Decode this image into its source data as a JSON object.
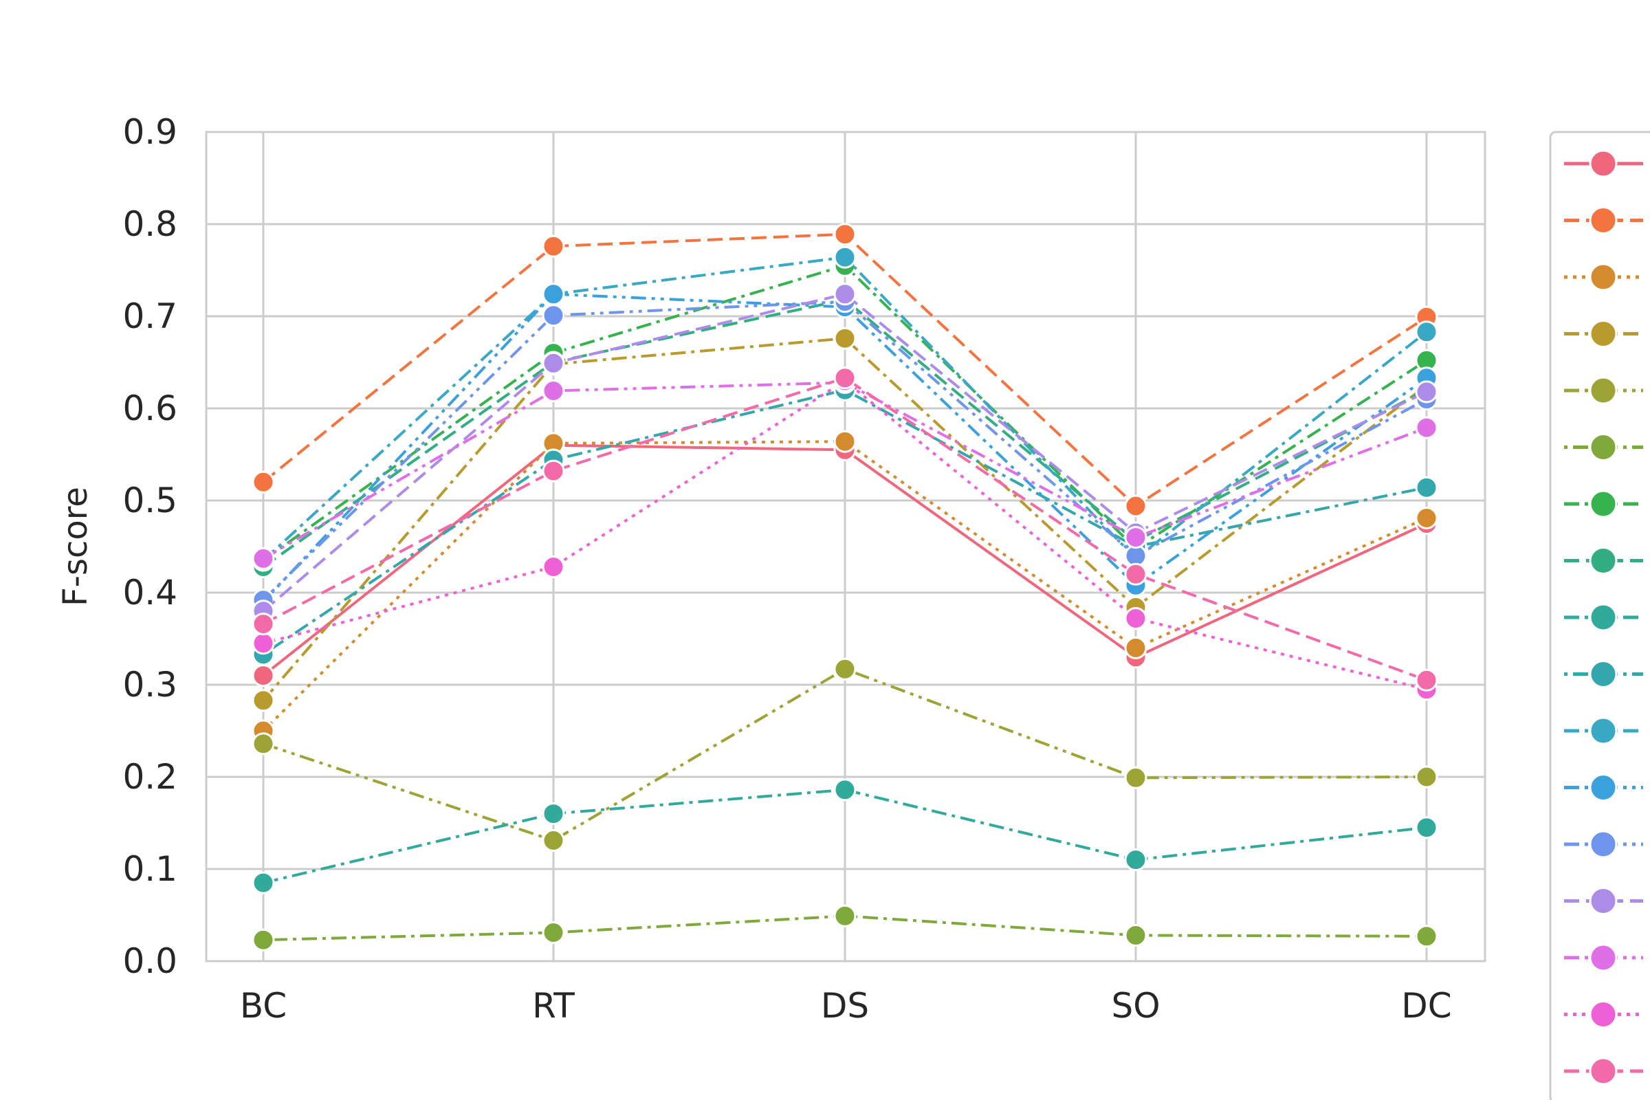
{
  "chart_data": {
    "type": "line",
    "categories": [
      "BC",
      "RT",
      "DS",
      "SO",
      "DC"
    ],
    "title": "",
    "xlabel": "",
    "ylabel": "F-score",
    "ylim": [
      0.0,
      0.9
    ],
    "yticks": [
      "0.0",
      "0.1",
      "0.2",
      "0.3",
      "0.4",
      "0.5",
      "0.6",
      "0.7",
      "0.8",
      "0.9"
    ],
    "grid": true,
    "legend": "right",
    "series": [
      {
        "values": [
          0.31,
          0.56,
          0.555,
          0.33,
          0.475
        ],
        "color": "#f0677d",
        "dash": "solid"
      },
      {
        "values": [
          0.52,
          0.776,
          0.789,
          0.494,
          0.699
        ],
        "color": "#f4743f",
        "dash": "dash"
      },
      {
        "values": [
          0.25,
          0.562,
          0.564,
          0.34,
          0.481
        ],
        "color": "#d48b2d",
        "dash": "dot"
      },
      {
        "values": [
          0.283,
          0.648,
          0.676,
          0.384,
          0.625
        ],
        "color": "#b89a2d",
        "dash": "dashdot"
      },
      {
        "values": [
          0.236,
          0.131,
          0.317,
          0.199,
          0.2
        ],
        "color": "#9da334",
        "dash": "dashdotdot"
      },
      {
        "values": [
          0.023,
          0.031,
          0.049,
          0.028,
          0.027
        ],
        "color": "#7fa93a",
        "dash": "dotdash"
      },
      {
        "values": [
          0.435,
          0.66,
          0.755,
          0.448,
          0.652
        ],
        "color": "#36b24e",
        "dash": "dashdot"
      },
      {
        "values": [
          0.428,
          0.65,
          0.718,
          0.456,
          0.62
        ],
        "color": "#32ae82",
        "dash": "dash"
      },
      {
        "values": [
          0.085,
          0.16,
          0.186,
          0.11,
          0.145
        ],
        "color": "#31aa9b",
        "dash": "dashdot"
      },
      {
        "values": [
          0.333,
          0.544,
          0.62,
          0.45,
          0.514
        ],
        "color": "#33a7ab",
        "dash": "dotdash"
      },
      {
        "values": [
          0.435,
          0.724,
          0.764,
          0.437,
          0.683
        ],
        "color": "#38a8c5",
        "dash": "dashdot"
      },
      {
        "values": [
          0.39,
          0.724,
          0.71,
          0.408,
          0.633
        ],
        "color": "#3aa1dd",
        "dash": "dashdotdot"
      },
      {
        "values": [
          0.392,
          0.701,
          0.716,
          0.44,
          0.61
        ],
        "color": "#6e95ec",
        "dash": "dashdotdot"
      },
      {
        "values": [
          0.38,
          0.649,
          0.724,
          0.465,
          0.618
        ],
        "color": "#ad8ce9",
        "dash": "dash"
      },
      {
        "values": [
          0.437,
          0.619,
          0.628,
          0.46,
          0.579
        ],
        "color": "#df6fe7",
        "dash": "dashdotdot"
      },
      {
        "values": [
          0.345,
          0.428,
          0.63,
          0.372,
          0.295
        ],
        "color": "#ef5fd5",
        "dash": "dot"
      },
      {
        "values": [
          0.366,
          0.532,
          0.633,
          0.42,
          0.305
        ],
        "color": "#f26aa8",
        "dash": "dash"
      }
    ]
  }
}
